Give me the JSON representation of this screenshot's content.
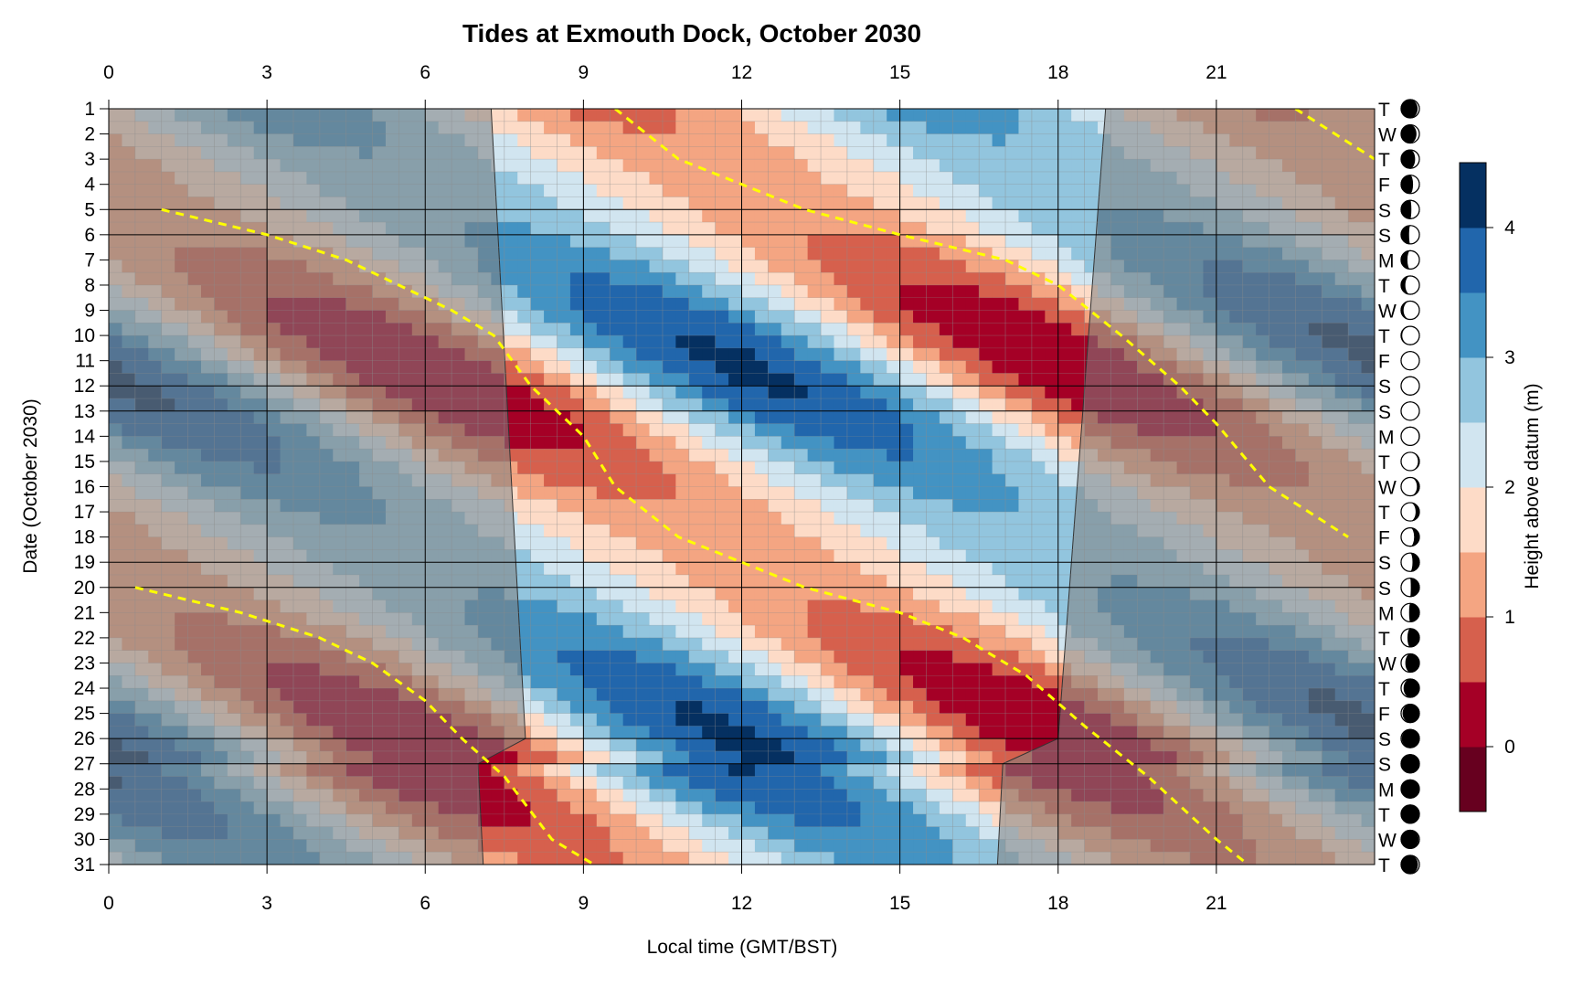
{
  "chart_data": {
    "type": "heatmap",
    "title": "Tides at Exmouth Dock, October 2030",
    "xlabel": "Local time (GMT/BST)",
    "ylabel": "Date (October 2030)",
    "xlim": [
      0,
      24
    ],
    "ylim": [
      1,
      31
    ],
    "x_ticks": [
      0,
      3,
      6,
      9,
      12,
      15,
      18,
      21
    ],
    "y_ticks": [
      1,
      2,
      3,
      4,
      5,
      6,
      7,
      8,
      9,
      10,
      11,
      12,
      13,
      14,
      15,
      16,
      17,
      18,
      19,
      20,
      21,
      22,
      23,
      24,
      25,
      26,
      27,
      28,
      29,
      30,
      31
    ],
    "grid": true,
    "colorbar": {
      "label": "Height above datum (m)",
      "ticks": [
        0,
        1,
        2,
        3,
        4
      ],
      "levels": [
        -0.5,
        0,
        0.5,
        1,
        1.5,
        2,
        2.5,
        3,
        3.5,
        4,
        4.5
      ],
      "colors": [
        "#67001f",
        "#a50026",
        "#d6604d",
        "#f4a582",
        "#fddbc7",
        "#d1e5f0",
        "#92c5de",
        "#4393c3",
        "#2166ac",
        "#053061"
      ],
      "placement": "right"
    },
    "tide_model": {
      "mean": 2.05,
      "m2_amp": 1.45,
      "spring_neap_amp": 0.6,
      "spring_day": 26.5,
      "spring_neap_period_days": 14.77,
      "m2_period_hours": 12.42,
      "first_high_water": {
        "day": 1,
        "hour": 9.6
      },
      "clock_change": {
        "from_day": 27,
        "offset_hours": -1
      }
    },
    "daylight": [
      {
        "day": 1,
        "sunrise": 7.25,
        "sunset": 18.9
      },
      {
        "day": 26,
        "sunrise": 7.9,
        "sunset": 18.0
      },
      {
        "day": 27,
        "sunrise": 7.0,
        "sunset": 16.95
      },
      {
        "day": 31,
        "sunrise": 7.1,
        "sunset": 16.85
      }
    ],
    "week_lines_days": [
      5,
      6,
      12,
      13,
      19,
      20,
      26,
      27
    ],
    "high_water_lines": [
      {
        "points": [
          [
            9.6,
            1
          ],
          [
            10.8,
            3
          ],
          [
            12,
            4
          ],
          [
            13.2,
            5
          ],
          [
            15,
            6
          ],
          [
            17,
            7
          ],
          [
            18,
            8
          ],
          [
            19.2,
            10
          ],
          [
            20.3,
            12
          ],
          [
            21,
            13.5
          ],
          [
            22,
            16
          ],
          [
            23.5,
            18
          ]
        ]
      },
      {
        "points": [
          [
            22.5,
            1
          ],
          [
            24,
            3
          ]
        ]
      },
      {
        "points": [
          [
            1,
            5
          ],
          [
            3,
            6
          ],
          [
            4.5,
            7
          ],
          [
            5.5,
            8
          ],
          [
            6.5,
            9
          ],
          [
            7.3,
            10
          ],
          [
            8,
            12
          ],
          [
            8.5,
            13
          ],
          [
            9,
            14
          ],
          [
            9.6,
            16
          ],
          [
            10.8,
            18
          ],
          [
            12,
            19
          ],
          [
            13.2,
            20
          ],
          [
            15,
            21
          ],
          [
            16.2,
            22
          ],
          [
            17.4,
            23.5
          ],
          [
            18.5,
            25.5
          ],
          [
            19.7,
            27.5
          ],
          [
            21,
            30
          ],
          [
            21.6,
            31
          ]
        ]
      },
      {
        "points": [
          [
            0.5,
            20
          ],
          [
            2.5,
            21
          ],
          [
            4,
            22
          ],
          [
            5,
            23
          ],
          [
            6,
            24.5
          ],
          [
            6.7,
            26
          ],
          [
            7.5,
            27.5
          ],
          [
            8.4,
            30
          ],
          [
            9.2,
            31
          ]
        ]
      }
    ],
    "moon_phases": [
      {
        "day": 1,
        "letter": "T",
        "phase": 0.1
      },
      {
        "day": 2,
        "letter": "W",
        "phase": 0.13
      },
      {
        "day": 3,
        "letter": "T",
        "phase": 0.16
      },
      {
        "day": 4,
        "letter": "F",
        "phase": 0.2
      },
      {
        "day": 5,
        "letter": "S",
        "phase": 0.23
      },
      {
        "day": 6,
        "letter": "S",
        "phase": 0.27
      },
      {
        "day": 7,
        "letter": "M",
        "phase": 0.3
      },
      {
        "day": 8,
        "letter": "T",
        "phase": 0.34
      },
      {
        "day": 9,
        "letter": "W",
        "phase": 0.38
      },
      {
        "day": 10,
        "letter": "T",
        "phase": 0.42
      },
      {
        "day": 11,
        "letter": "F",
        "phase": 0.46
      },
      {
        "day": 12,
        "letter": "S",
        "phase": 0.5
      },
      {
        "day": 13,
        "letter": "S",
        "phase": 0.53
      },
      {
        "day": 14,
        "letter": "M",
        "phase": 0.56
      },
      {
        "day": 15,
        "letter": "T",
        "phase": 0.59
      },
      {
        "day": 16,
        "letter": "W",
        "phase": 0.62
      },
      {
        "day": 17,
        "letter": "T",
        "phase": 0.65
      },
      {
        "day": 18,
        "letter": "F",
        "phase": 0.68
      },
      {
        "day": 19,
        "letter": "S",
        "phase": 0.71
      },
      {
        "day": 20,
        "letter": "S",
        "phase": 0.74
      },
      {
        "day": 21,
        "letter": "M",
        "phase": 0.77
      },
      {
        "day": 22,
        "letter": "T",
        "phase": 0.8
      },
      {
        "day": 23,
        "letter": "W",
        "phase": 0.84
      },
      {
        "day": 24,
        "letter": "T",
        "phase": 0.88
      },
      {
        "day": 25,
        "letter": "F",
        "phase": 0.91
      },
      {
        "day": 26,
        "letter": "S",
        "phase": 0.94
      },
      {
        "day": 27,
        "letter": "S",
        "phase": 0.97
      },
      {
        "day": 28,
        "letter": "M",
        "phase": 0.99
      },
      {
        "day": 29,
        "letter": "T",
        "phase": 0.03
      },
      {
        "day": 30,
        "letter": "W",
        "phase": 0.06
      },
      {
        "day": 31,
        "letter": "T",
        "phase": 0.09
      }
    ]
  }
}
